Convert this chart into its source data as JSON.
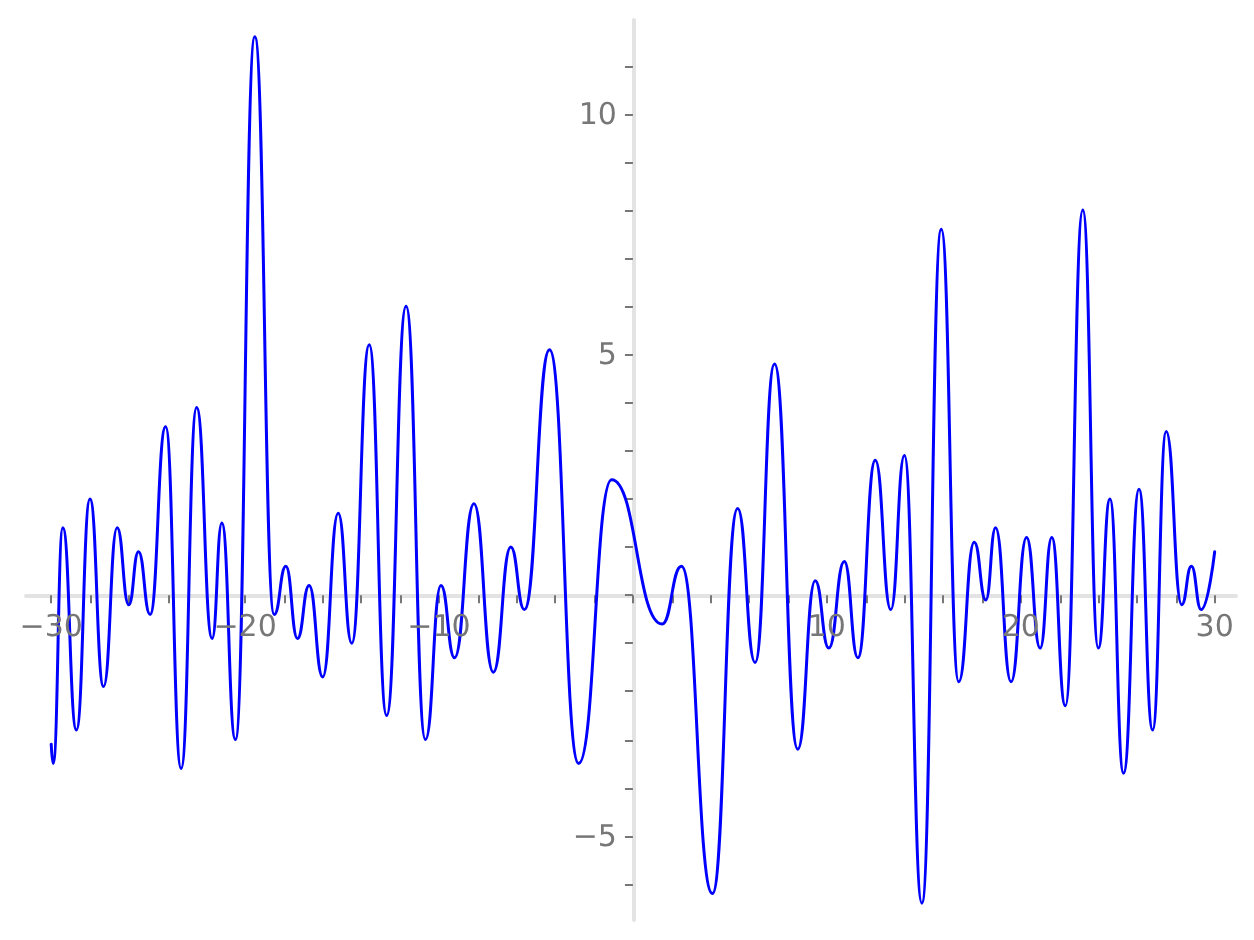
{
  "chart_data": {
    "type": "line",
    "color": "#0000ff",
    "marker": "none",
    "line_style": "solid",
    "x": [
      -30.0,
      -29.9,
      -29.4,
      -28.7,
      -28.0,
      -27.3,
      -26.6,
      -26.0,
      -25.5,
      -24.9,
      -24.1,
      -23.3,
      -22.5,
      -21.7,
      -21.2,
      -20.5,
      -19.5,
      -18.5,
      -17.9,
      -17.3,
      -16.7,
      -16.0,
      -15.2,
      -14.5,
      -13.6,
      -12.7,
      -11.7,
      -10.7,
      -9.9,
      -9.2,
      -8.2,
      -7.2,
      -6.3,
      -5.6,
      -4.3,
      -2.8,
      -1.1,
      1.5,
      2.5,
      4.1,
      5.4,
      6.3,
      7.3,
      8.5,
      9.4,
      10.1,
      10.9,
      11.6,
      12.5,
      13.3,
      14.0,
      14.9,
      15.9,
      16.8,
      17.6,
      18.2,
      18.7,
      19.5,
      20.3,
      21.0,
      21.6,
      22.3,
      23.2,
      24.0,
      24.6,
      25.3,
      26.1,
      26.8,
      27.5,
      28.3,
      28.8,
      29.3,
      30.0
    ],
    "values": [
      -3.1,
      -3.5,
      1.4,
      -2.8,
      2.0,
      -1.9,
      1.4,
      -0.2,
      0.9,
      -0.4,
      3.5,
      -3.6,
      3.9,
      -0.9,
      1.5,
      -3.0,
      11.6,
      -0.4,
      0.6,
      -0.9,
      0.2,
      -1.7,
      1.7,
      -1.0,
      5.2,
      -2.5,
      6.0,
      -3.0,
      0.2,
      -1.3,
      1.9,
      -1.6,
      1.0,
      -0.3,
      5.1,
      -3.5,
      2.4,
      -0.6,
      0.6,
      -6.2,
      1.8,
      -1.4,
      4.8,
      -3.2,
      0.3,
      -1.1,
      0.7,
      -1.3,
      2.8,
      -0.3,
      2.9,
      -6.4,
      7.6,
      -1.8,
      1.1,
      -0.1,
      1.4,
      -1.8,
      1.2,
      -1.1,
      1.2,
      -2.3,
      8.0,
      -1.1,
      2.0,
      -3.7,
      2.2,
      -2.8,
      3.4,
      -0.2,
      0.6,
      -0.3,
      0.9
    ],
    "xlim": [
      -31.3,
      31.1
    ],
    "ylim": [
      -6.75,
      11.95
    ],
    "xticks": [
      {
        "value": -30,
        "label": "−30"
      },
      {
        "value": -28,
        "label": null
      },
      {
        "value": -26,
        "label": null
      },
      {
        "value": -24,
        "label": null
      },
      {
        "value": -22,
        "label": null
      },
      {
        "value": -20,
        "label": "−20"
      },
      {
        "value": -18,
        "label": null
      },
      {
        "value": -16,
        "label": null
      },
      {
        "value": -14,
        "label": null
      },
      {
        "value": -12,
        "label": null
      },
      {
        "value": -10,
        "label": "−10"
      },
      {
        "value": -8,
        "label": null
      },
      {
        "value": -6,
        "label": null
      },
      {
        "value": -4,
        "label": null
      },
      {
        "value": -2,
        "label": null
      },
      {
        "value": 0,
        "label": null
      },
      {
        "value": 2,
        "label": null
      },
      {
        "value": 4,
        "label": null
      },
      {
        "value": 6,
        "label": null
      },
      {
        "value": 8,
        "label": null
      },
      10,
      {
        "value": 12,
        "label": null
      },
      {
        "value": 14,
        "label": null
      },
      {
        "value": 16,
        "label": null
      },
      {
        "value": 18,
        "label": null
      },
      20,
      {
        "value": 22,
        "label": null
      },
      {
        "value": 24,
        "label": null
      },
      {
        "value": 26,
        "label": null
      },
      {
        "value": 28,
        "label": null
      },
      30
    ],
    "yticks": [
      {
        "value": -6,
        "label": null
      },
      {
        "value": -5,
        "label": "−5"
      },
      {
        "value": -4,
        "label": null
      },
      {
        "value": -3,
        "label": null
      },
      {
        "value": -2,
        "label": null
      },
      {
        "value": -1,
        "label": null
      },
      {
        "value": 0,
        "label": null
      },
      {
        "value": 1,
        "label": null
      },
      {
        "value": 2,
        "label": null
      },
      {
        "value": 3,
        "label": null
      },
      {
        "value": 4,
        "label": null
      },
      5,
      {
        "value": 6,
        "label": null
      },
      {
        "value": 7,
        "label": null
      },
      {
        "value": 8,
        "label": null
      },
      {
        "value": 9,
        "label": null
      },
      10,
      {
        "value": 11,
        "label": null
      }
    ]
  }
}
